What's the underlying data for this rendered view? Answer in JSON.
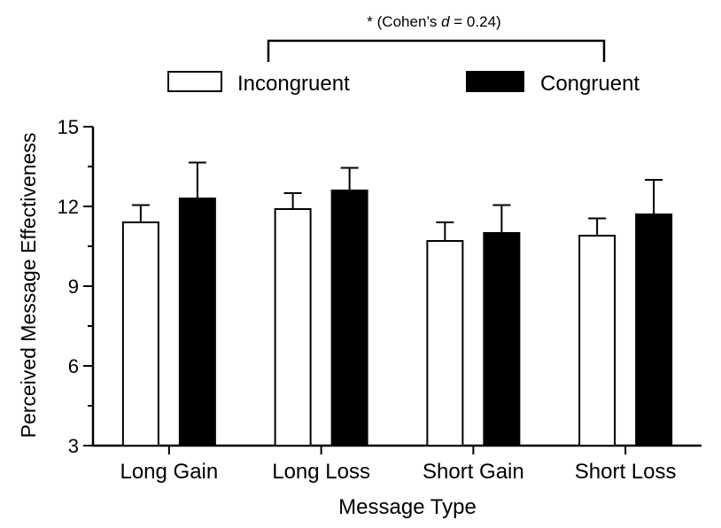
{
  "chart_data": {
    "type": "bar",
    "title": "",
    "xlabel": "Message Type",
    "ylabel": "Perceived Message Effectiveness",
    "categories": [
      "Long Gain",
      "Long Loss",
      "Short Gain",
      "Short Loss"
    ],
    "series": [
      {
        "name": "Incongruent",
        "color": "#ffffff",
        "values": [
          11.4,
          11.9,
          10.7,
          10.9
        ],
        "errors": [
          0.65,
          0.6,
          0.7,
          0.65
        ]
      },
      {
        "name": "Congruent",
        "color": "#000000",
        "values": [
          12.3,
          12.6,
          11.0,
          11.7
        ],
        "errors": [
          1.35,
          0.85,
          1.05,
          1.3
        ]
      }
    ],
    "ylim": [
      3,
      15
    ],
    "yticks": [
      3,
      6,
      9,
      12,
      15
    ],
    "grid": false,
    "legend": {
      "position": "top",
      "entries": [
        "Incongruent",
        "Congruent"
      ]
    },
    "annotation": {
      "prefix": "* (Cohen’s ",
      "d": "d",
      "suffix": " = 0.24)"
    }
  }
}
